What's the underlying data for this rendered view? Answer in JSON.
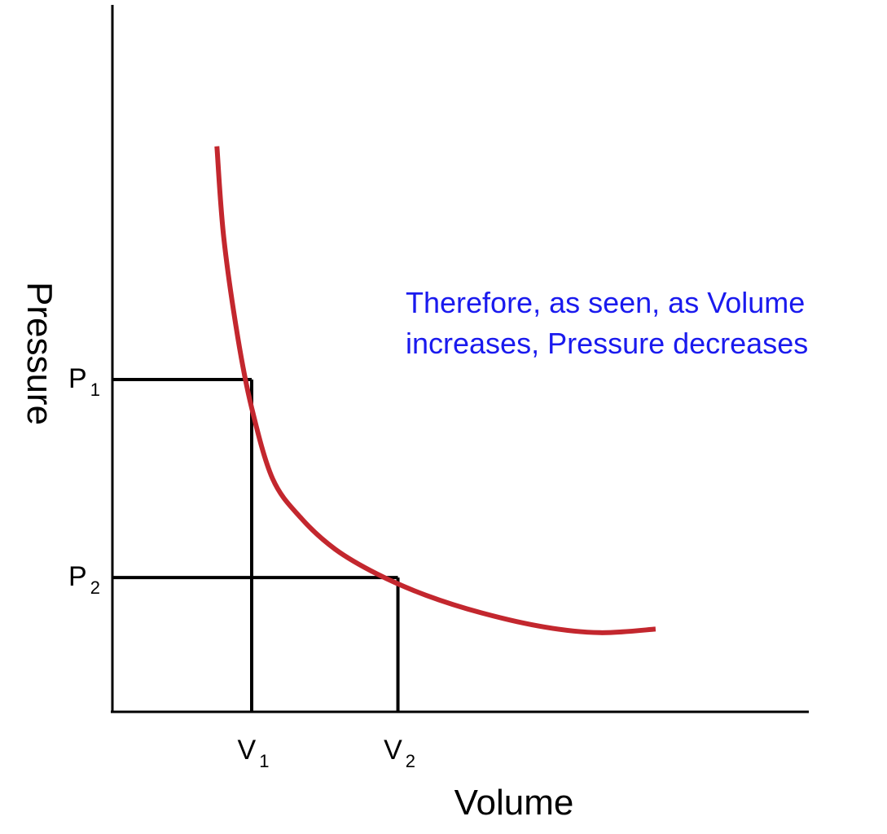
{
  "chart_data": {
    "type": "line",
    "title": "",
    "xlabel": "Volume",
    "ylabel": "Pressure",
    "xlim": [
      0,
      10
    ],
    "ylim": [
      0,
      10
    ],
    "grid": false,
    "legend": "none",
    "series": [
      {
        "x": [
          1.5,
          1.6,
          1.8,
          2.0,
          2.3,
          2.7,
          3.2,
          3.8,
          4.5,
          5.3,
          6.2,
          7.0,
          7.8
        ],
        "y": [
          8.0,
          6.7,
          5.3,
          4.3,
          3.3,
          2.75,
          2.3,
          1.95,
          1.65,
          1.4,
          1.2,
          1.12,
          1.17
        ]
      }
    ],
    "markers": {
      "x_ticks": [
        {
          "base": "V",
          "sub": "1",
          "value": 2.0
        },
        {
          "base": "V",
          "sub": "2",
          "value": 4.1
        }
      ],
      "y_ticks": [
        {
          "base": "P",
          "sub": "1",
          "value": 4.7
        },
        {
          "base": "P",
          "sub": "2",
          "value": 1.9
        }
      ]
    },
    "annotation": {
      "lines": [
        "Therefore, as seen, as Volume",
        "increases, Pressure decreases"
      ],
      "placement": "right-middle"
    },
    "colors": {
      "curve": "#c3272e",
      "annotation": "#1a1aee",
      "axes": "#000000"
    }
  }
}
